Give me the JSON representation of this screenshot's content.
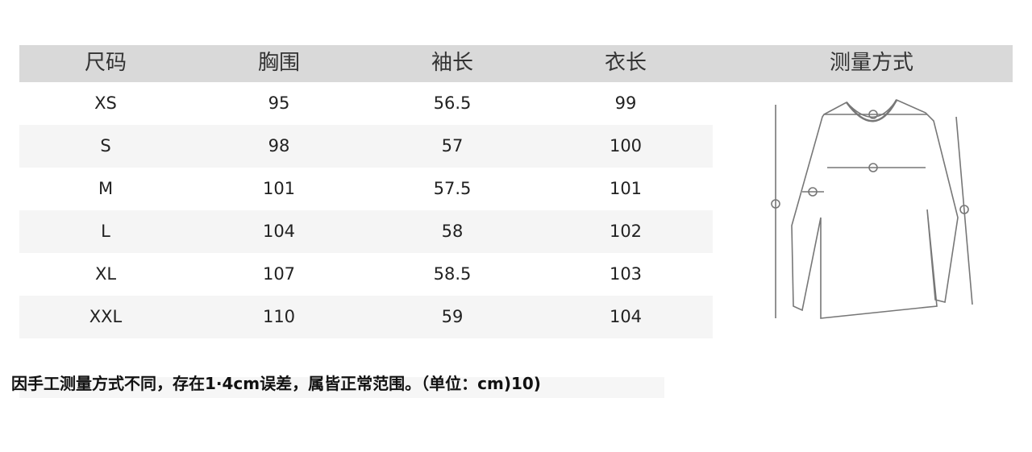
{
  "headers": [
    "尺码",
    "胸围",
    "袖长",
    "衣长",
    "测量方式"
  ],
  "rows": [
    [
      "XS",
      "95",
      "56.5",
      "99"
    ],
    [
      "S",
      "98",
      "57",
      "100"
    ],
    [
      "M",
      "101",
      "57.5",
      "101"
    ],
    [
      "L",
      "104",
      "58",
      "102"
    ],
    [
      "XL",
      "107",
      "58.5",
      "103"
    ],
    [
      "XXL",
      "110",
      "59",
      "104"
    ]
  ],
  "note": "因手工测量方式不同，存在1·4cm误差，属皆正常范围。（单位：cm)10)",
  "colors": {
    "header_bg": "#d9d9d9",
    "alt_row_bg": "#f5f5f5"
  },
  "diagram": "long-sleeve-shirt-measurement-sketch"
}
